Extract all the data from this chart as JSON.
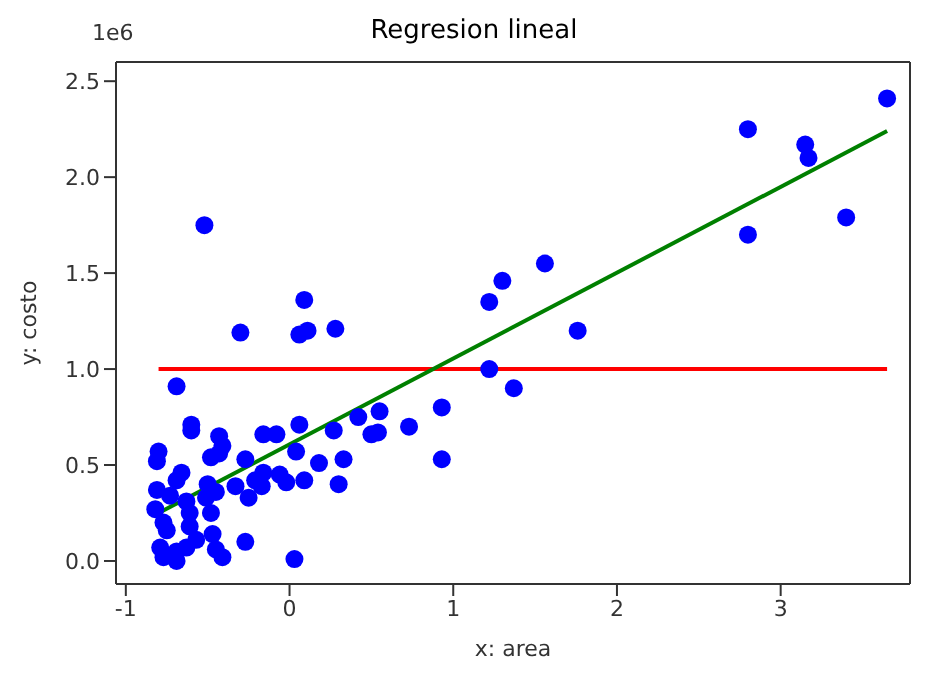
{
  "chart_data": {
    "type": "scatter",
    "title": "Regresion lineal",
    "xlabel": "x: area",
    "ylabel": "y: costo",
    "annotations": [
      "1e6"
    ],
    "xlim": [
      -1.06,
      3.79
    ],
    "xticks": [
      -1,
      0,
      1,
      2,
      3
    ],
    "ylim": [
      -0.12,
      2.6
    ],
    "yticks": [
      {
        "value": 0,
        "label": "0.0"
      },
      {
        "value": 0.5,
        "label": "0.5"
      },
      {
        "value": 1,
        "label": "1.0"
      },
      {
        "value": 1.5,
        "label": "1.5"
      },
      {
        "value": 2,
        "label": "2.0"
      },
      {
        "value": 2.5,
        "label": "2.5"
      }
    ],
    "grid": false,
    "legend": false,
    "series": [
      {
        "marker": "circle",
        "color": "#0000ff",
        "x": [
          -0.52,
          -0.3,
          0.09,
          0.06,
          0.11,
          0.28,
          -0.69,
          -0.6,
          -0.6,
          -0.43,
          -0.41,
          -0.48,
          -0.43,
          -0.27,
          -0.16,
          -0.08,
          0.06,
          0.04,
          0.42,
          0.55,
          0.54,
          0.5,
          0.73,
          0.93,
          0.93,
          0.27,
          0.33,
          0.18,
          0.3,
          0.09,
          -0.02,
          -0.06,
          -0.16,
          -0.21,
          -0.17,
          -0.25,
          -0.33,
          -0.45,
          -0.5,
          -0.51,
          -0.8,
          -0.81,
          -0.66,
          -0.69,
          -0.81,
          -0.82,
          -0.73,
          -0.63,
          -0.61,
          -0.48,
          -0.77,
          -0.75,
          -0.61,
          -0.57,
          -0.47,
          -0.79,
          -0.77,
          -0.69,
          -0.69,
          -0.63,
          -0.45,
          -0.41,
          -0.27,
          0.03,
          1.22,
          1.3,
          1.56,
          1.76,
          1.22,
          1.37,
          2.8,
          2.8,
          3.15,
          3.17,
          3.4,
          3.65
        ],
        "values": [
          1.75,
          1.19,
          1.36,
          1.18,
          1.2,
          1.21,
          0.91,
          0.71,
          0.68,
          0.65,
          0.6,
          0.54,
          0.56,
          0.53,
          0.66,
          0.66,
          0.71,
          0.57,
          0.75,
          0.78,
          0.67,
          0.66,
          0.7,
          0.8,
          0.53,
          0.68,
          0.53,
          0.51,
          0.4,
          0.42,
          0.41,
          0.45,
          0.46,
          0.42,
          0.39,
          0.33,
          0.39,
          0.36,
          0.4,
          0.33,
          0.57,
          0.52,
          0.46,
          0.42,
          0.37,
          0.27,
          0.34,
          0.31,
          0.25,
          0.25,
          0.2,
          0.16,
          0.18,
          0.11,
          0.14,
          0.07,
          0.02,
          0.05,
          0.0,
          0.07,
          0.06,
          0.02,
          0.1,
          0.01,
          1.35,
          1.46,
          1.55,
          1.2,
          1.0,
          0.9,
          2.25,
          1.7,
          2.17,
          2.1,
          1.79,
          2.41
        ]
      },
      {
        "type": "line",
        "marker": "none",
        "line_style": "solid",
        "color": "#ff0000",
        "x": [
          -0.8,
          3.65
        ],
        "values": [
          1.0,
          1.0
        ]
      },
      {
        "type": "line",
        "marker": "none",
        "line_style": "solid",
        "color": "#008000",
        "x": [
          -0.8,
          3.65
        ],
        "values": [
          0.25,
          2.24
        ]
      }
    ]
  }
}
